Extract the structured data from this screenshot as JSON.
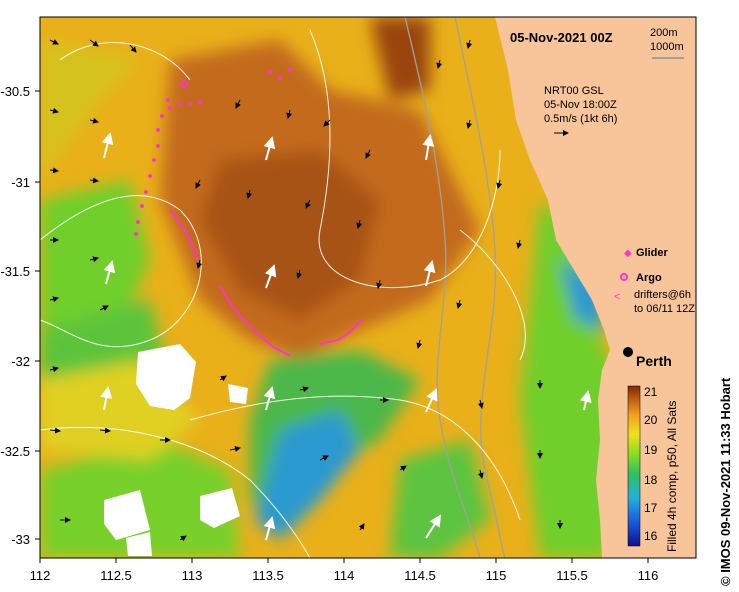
{
  "map": {
    "title": "05-Nov-2021 00Z",
    "depth_contours": [
      "200m",
      "1000m"
    ],
    "current_source": "NRT00 GSL",
    "current_time": "05-Nov 18:00Z",
    "current_scale": "0.5m/s (1kt 6h)",
    "city": "Perth",
    "credit": "© IMOS 09-Nov-2021 11:33 Hobart",
    "colorbar_label": "Filled 4h comp, p50, All Sats",
    "colorbar_ticks": [
      "21",
      "20",
      "19",
      "18",
      "17",
      "16"
    ],
    "x_ticks": [
      "112",
      "112.5",
      "113",
      "113.5",
      "114",
      "114.5",
      "115",
      "115.5",
      "116"
    ],
    "y_ticks": [
      "-30.5",
      "-31",
      "-31.5",
      "-32",
      "-32.5",
      "-33"
    ],
    "legend": {
      "glider": "Glider",
      "argo": "Argo",
      "drifters_line1": "drifters@6h",
      "drifters_line2": "to 06/11 12Z"
    },
    "colors": {
      "land": "#f8c49a",
      "glider": "#ff33cc",
      "warm": "#c8741a",
      "cool": "#2aa0d8"
    }
  }
}
